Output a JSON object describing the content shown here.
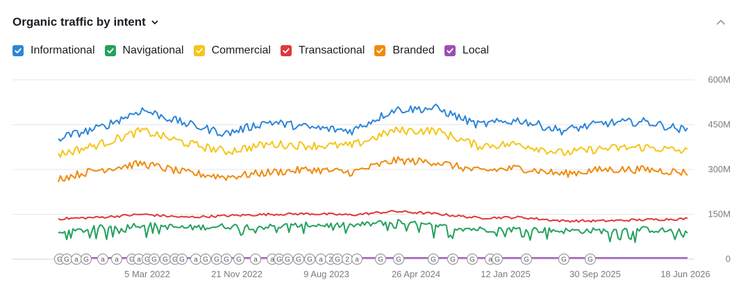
{
  "header": {
    "title": "Organic traffic by intent"
  },
  "legend": [
    {
      "label": "Informational",
      "color": "#2e85d6"
    },
    {
      "label": "Navigational",
      "color": "#23a15d"
    },
    {
      "label": "Commercial",
      "color": "#f5c518"
    },
    {
      "label": "Transactional",
      "color": "#e0383a"
    },
    {
      "label": "Branded",
      "color": "#f08a0c"
    },
    {
      "label": "Local",
      "color": "#9b4fb5"
    }
  ],
  "icons": {
    "title_toggle": "chevron-down-icon",
    "collapse": "chevron-up-icon",
    "checkbox": "check-icon"
  },
  "chart_data": {
    "type": "line",
    "x_ticks": [
      "5 Mar 2022",
      "21 Nov 2022",
      "9 Aug 2023",
      "26 Apr 2024",
      "12 Jan 2025",
      "30 Sep 2025",
      "18 Jun 2026"
    ],
    "y_ticks": [
      "0",
      "150M",
      "300M",
      "450M",
      "600M"
    ],
    "ylim": [
      0,
      600000000
    ],
    "grid": true,
    "x": [
      "2021-06",
      "2021-10",
      "2022-02",
      "2022-06",
      "2022-10",
      "2023-02",
      "2023-06",
      "2023-10",
      "2024-02",
      "2024-06",
      "2024-10",
      "2025-02",
      "2025-06",
      "2025-10",
      "2026-02",
      "2026-06"
    ],
    "series": [
      {
        "name": "Informational",
        "color": "#2e85d6",
        "values": [
          405,
          440,
          500,
          455,
          420,
          460,
          440,
          430,
          500,
          505,
          450,
          465,
          430,
          455,
          460,
          430
        ]
      },
      {
        "name": "Commercial",
        "color": "#f5c518",
        "values": [
          350,
          385,
          430,
          390,
          360,
          385,
          380,
          380,
          430,
          430,
          380,
          385,
          355,
          370,
          375,
          360
        ]
      },
      {
        "name": "Branded",
        "color": "#f08a0c",
        "values": [
          270,
          300,
          320,
          290,
          275,
          290,
          300,
          290,
          330,
          325,
          295,
          305,
          285,
          300,
          300,
          290
        ]
      },
      {
        "name": "Transactional",
        "color": "#e0383a",
        "values": [
          135,
          140,
          150,
          140,
          145,
          150,
          152,
          148,
          160,
          152,
          138,
          140,
          128,
          128,
          132,
          135
        ]
      },
      {
        "name": "Navigational",
        "color": "#23a15d",
        "values": [
          85,
          105,
          115,
          105,
          110,
          108,
          115,
          112,
          125,
          110,
          100,
          100,
          95,
          95,
          100,
          90
        ]
      },
      {
        "name": "Local",
        "color": "#9b4fb5",
        "values": [
          4,
          4,
          4,
          4,
          4,
          4,
          4,
          4,
          4,
          4,
          4,
          4,
          4,
          4,
          4,
          4
        ]
      }
    ],
    "events": [
      "G",
      "G",
      "a",
      "G",
      "a",
      "a",
      "G",
      "a",
      "G",
      "G",
      "G",
      "G",
      "G",
      "a",
      "G",
      "G",
      "G",
      "G",
      "a",
      "a",
      "G",
      "G",
      "G",
      "G",
      "a",
      "2",
      "G",
      "2",
      "a",
      "G",
      "G",
      "G",
      "G",
      "G",
      "a",
      "G",
      "G",
      "G",
      "G"
    ]
  }
}
